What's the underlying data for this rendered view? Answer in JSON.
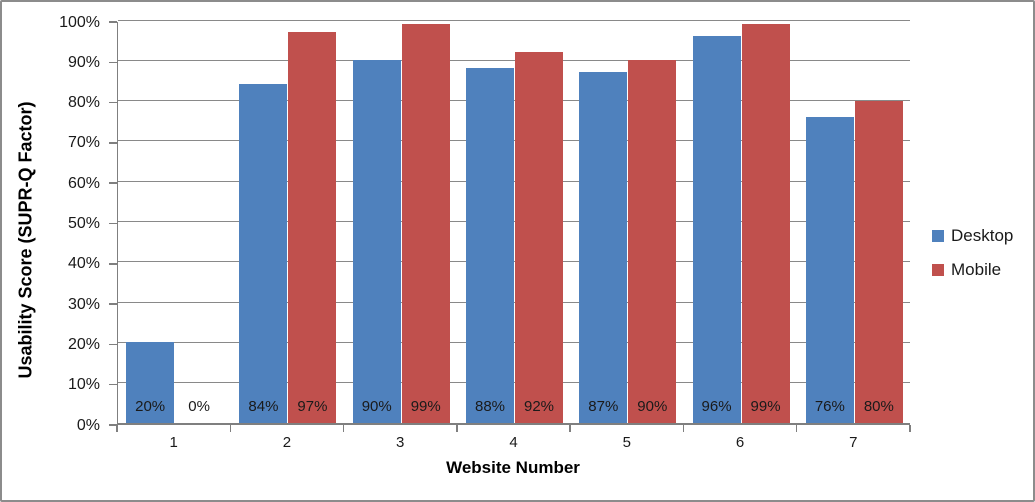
{
  "chart_data": {
    "type": "bar",
    "title": "",
    "categories": [
      "1",
      "2",
      "3",
      "4",
      "5",
      "6",
      "7"
    ],
    "series": [
      {
        "name": "Desktop",
        "color": "#4F81BD",
        "values": [
          20,
          84,
          90,
          88,
          87,
          96,
          76
        ],
        "labels": [
          "20%",
          "84%",
          "90%",
          "88%",
          "87%",
          "96%",
          "76%"
        ]
      },
      {
        "name": "Mobile",
        "color": "#C0504D",
        "values": [
          0,
          97,
          99,
          92,
          90,
          99,
          80
        ],
        "labels": [
          "0%",
          "97%",
          "99%",
          "92%",
          "90%",
          "99%",
          "80%"
        ]
      }
    ],
    "xlabel": "Website Number",
    "ylabel": "Usability Score (SUPR-Q Factor)",
    "ylim": [
      0,
      100
    ],
    "ytick_step": 10,
    "yticks": [
      "0%",
      "10%",
      "20%",
      "30%",
      "40%",
      "50%",
      "60%",
      "70%",
      "80%",
      "90%",
      "100%"
    ],
    "grid": true,
    "legend_position": "right",
    "colors": {
      "axis": "#7F7F7F",
      "gridline": "#898989",
      "border": "#8C8C8C",
      "text": "#1A1A1A"
    }
  }
}
